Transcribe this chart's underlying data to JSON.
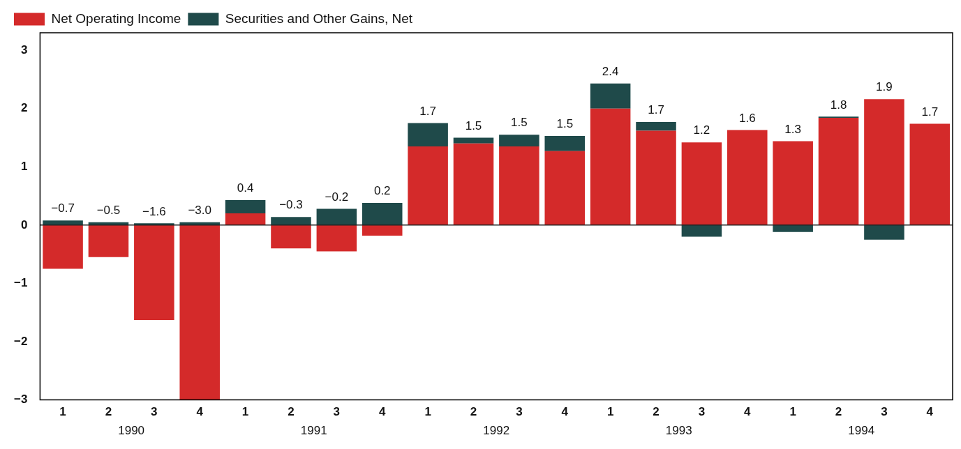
{
  "chart_data": {
    "type": "bar",
    "stacked": true,
    "categories": [
      "1",
      "2",
      "3",
      "4",
      "1",
      "2",
      "3",
      "4",
      "1",
      "2",
      "3",
      "4",
      "1",
      "2",
      "3",
      "4",
      "1",
      "2",
      "3",
      "4"
    ],
    "series": [
      {
        "name": "Net Operating Income",
        "color": "#d42a2a",
        "values": [
          -0.75,
          -0.55,
          -1.63,
          -3.0,
          0.2,
          -0.4,
          -0.45,
          -0.18,
          1.35,
          1.4,
          1.35,
          1.27,
          2.0,
          1.62,
          1.42,
          1.63,
          1.44,
          1.84,
          2.16,
          1.74
        ]
      },
      {
        "name": "Securities and Other Gains, Net",
        "color": "#1f4a4a",
        "values": [
          0.08,
          0.05,
          0.03,
          0.05,
          0.23,
          0.14,
          0.28,
          0.38,
          0.4,
          0.1,
          0.2,
          0.26,
          0.43,
          0.15,
          -0.2,
          null,
          -0.12,
          0.02,
          -0.25,
          null
        ]
      }
    ],
    "totals": [
      "−0.7",
      "−0.5",
      "−1.6",
      "−3.0",
      "0.4",
      "−0.3",
      "−0.2",
      "0.2",
      "1.7",
      "1.5",
      "1.5",
      "1.5",
      "2.4",
      "1.7",
      "1.2",
      "1.6",
      "1.3",
      "1.8",
      "1.9",
      "1.7"
    ],
    "ylim": [
      -3,
      3.3
    ],
    "yticks": [
      -3,
      -2,
      -1,
      0,
      1,
      2,
      3
    ],
    "ref_lines": [
      {
        "axis": "y",
        "value": 0,
        "color": "#222222"
      }
    ],
    "annotations": [
      "1990",
      "1991",
      "1992",
      "1993",
      "1994"
    ],
    "grid": false,
    "legend": "top left"
  }
}
